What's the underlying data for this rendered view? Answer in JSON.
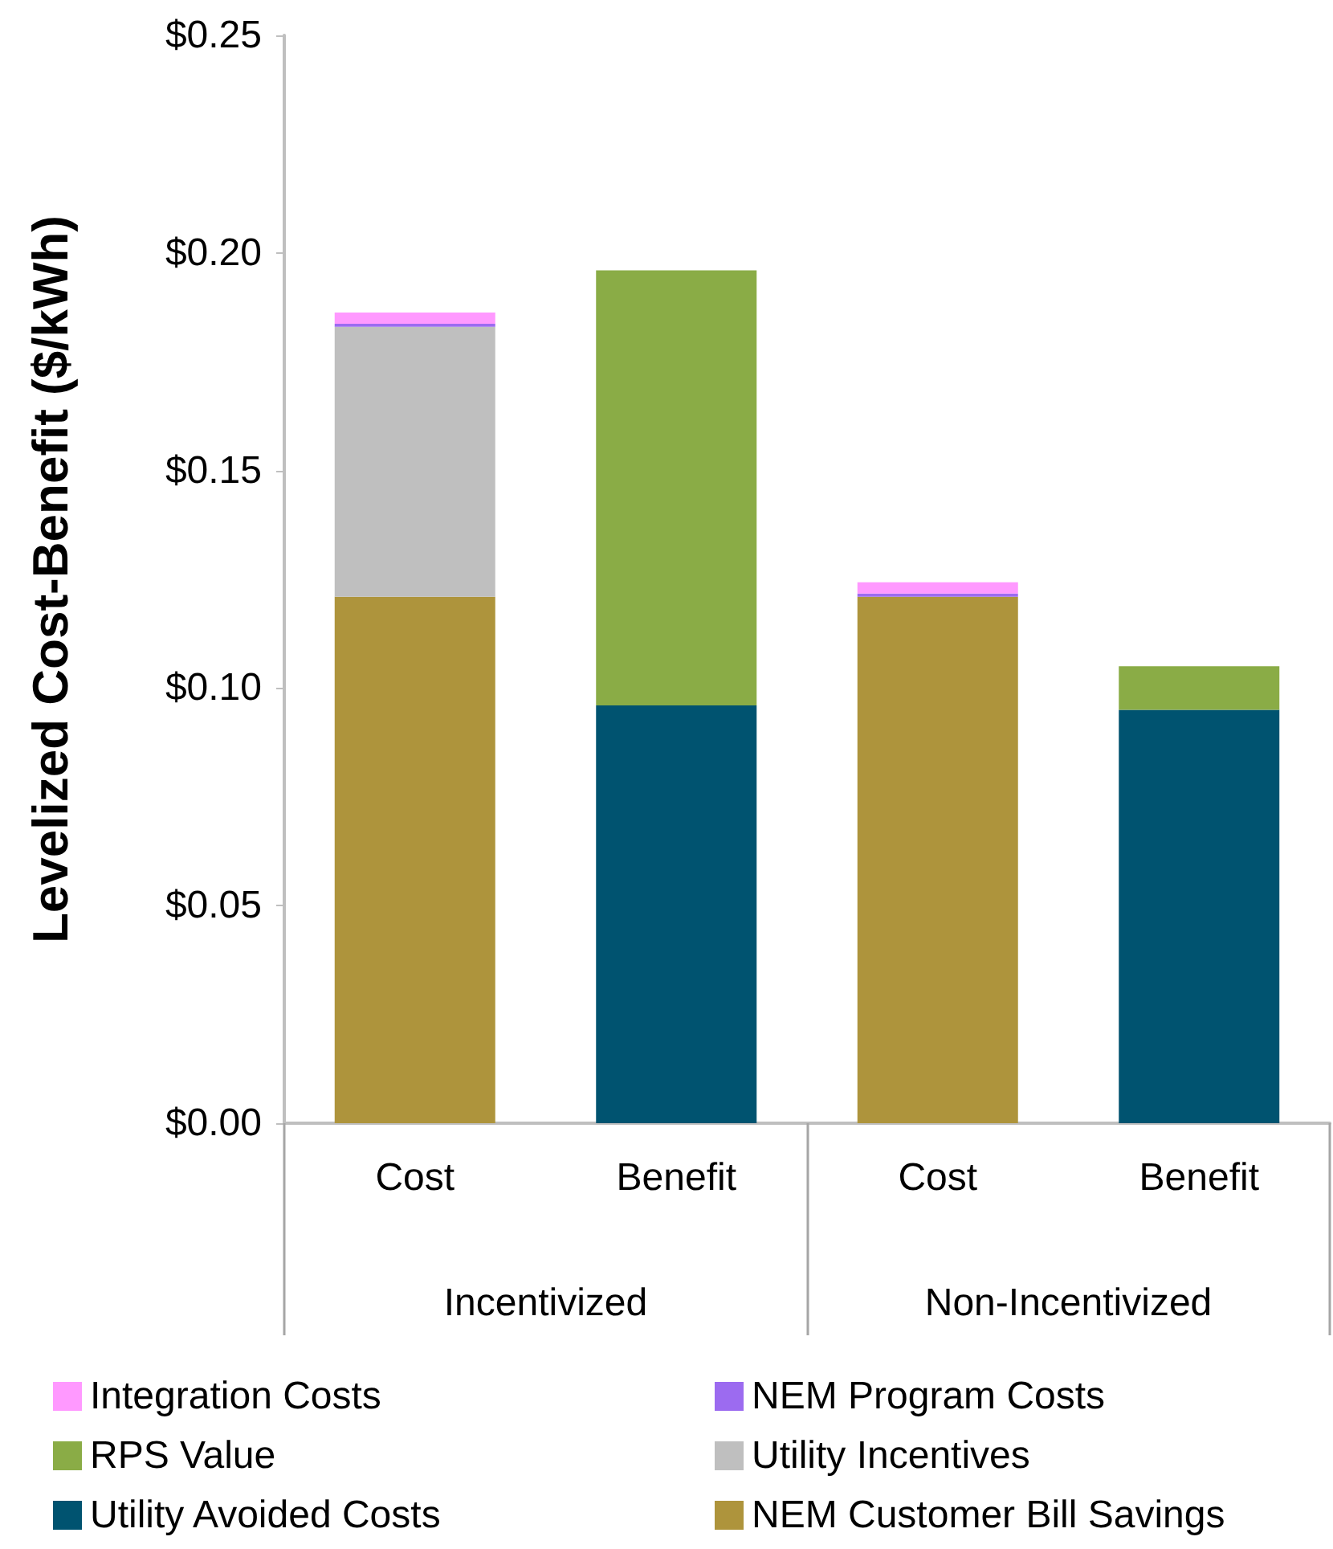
{
  "chart_data": {
    "type": "bar",
    "stacked": true,
    "ylabel": "Levelized Cost-Benefit ($/kWh)",
    "categories": [
      "Cost",
      "Benefit",
      "Cost",
      "Benefit"
    ],
    "annotations": [
      "Incentivized",
      "Non-Incentivized"
    ],
    "series": [
      {
        "name": "NEM Customer Bill Savings",
        "color": "#ae943c",
        "values": [
          0.121,
          null,
          0.121,
          null
        ]
      },
      {
        "name": "Utility Avoided Costs",
        "color": "#005370",
        "values": [
          null,
          0.096,
          null,
          0.095
        ]
      },
      {
        "name": "Utility Incentives",
        "color": "#bfbfbf",
        "values": [
          0.062,
          null,
          null,
          null
        ]
      },
      {
        "name": "RPS Value",
        "color": "#8aac46",
        "values": [
          null,
          0.1,
          null,
          0.01
        ]
      },
      {
        "name": "NEM Program Costs",
        "color": "#9c6bf0",
        "values": [
          0.0007,
          null,
          0.0007,
          null
        ]
      },
      {
        "name": "Integration Costs",
        "color": "#ff99ff",
        "values": [
          0.0026,
          null,
          0.0026,
          null
        ]
      }
    ],
    "ylim": [
      0,
      0.25
    ],
    "yticks": [
      {
        "value": 0,
        "label": "$0.00"
      },
      {
        "value": 0.05,
        "label": "$0.05"
      },
      {
        "value": 0.1,
        "label": "$0.10"
      },
      {
        "value": 0.15,
        "label": "$0.15"
      },
      {
        "value": 0.2,
        "label": "$0.20"
      },
      {
        "value": 0.25,
        "label": "$0.25"
      }
    ],
    "grid": false,
    "legend": "bottom"
  }
}
